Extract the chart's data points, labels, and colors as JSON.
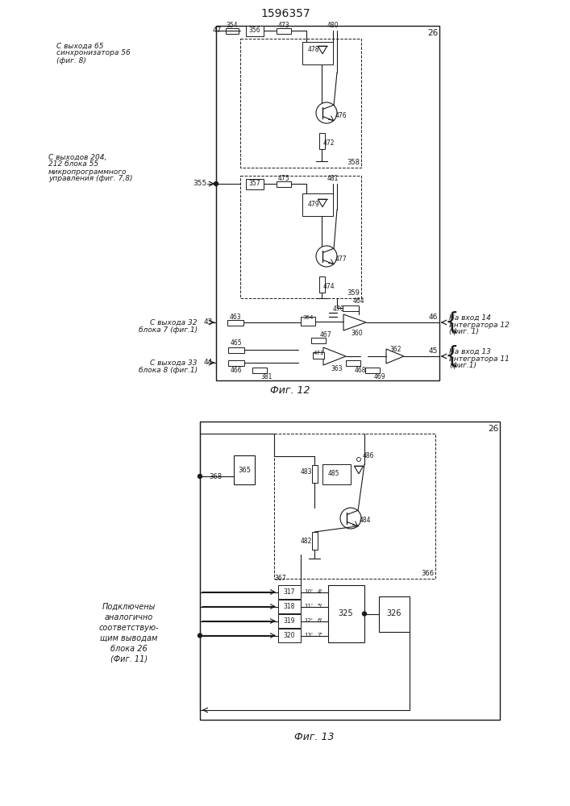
{
  "title": "1596357",
  "fig12_label": "Фиг. 12",
  "fig13_label": "Фиг. 13",
  "line_color": "#1a1a1a"
}
